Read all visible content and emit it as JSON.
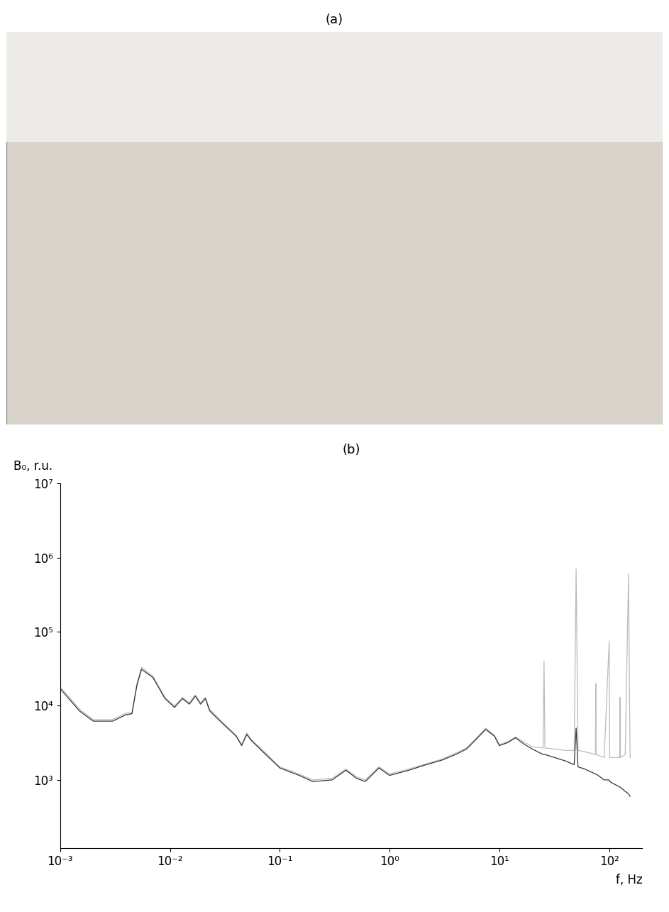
{
  "photo_label": "(a)",
  "chart_data": {
    "type": "line",
    "title": "(b)",
    "y_label": "B₀, r.u.",
    "x_label": "f, Hz",
    "log": true,
    "grid": false,
    "tick_labels": true,
    "x": [
      0.001,
      0.0015,
      0.002,
      0.003,
      0.004,
      0.0045,
      0.005,
      0.0055,
      0.007,
      0.009,
      0.011,
      0.013,
      0.015,
      0.017,
      0.019,
      0.021,
      0.023,
      0.03,
      0.04,
      0.045,
      0.05,
      0.055,
      0.07,
      0.1,
      0.15,
      0.2,
      0.3,
      0.4,
      0.5,
      0.6,
      0.8,
      1.0,
      1.5,
      2,
      3,
      4,
      5,
      6,
      7.5,
      9,
      10,
      12,
      14,
      17,
      20,
      25,
      25.5,
      26,
      40,
      48,
      50,
      52,
      60,
      75,
      75.5,
      76,
      90,
      100,
      101,
      125,
      125.5,
      126,
      140,
      150,
      155
    ],
    "series": [
      {
        "color": "#bbbbbb",
        "values": [
          18000,
          9000,
          6500,
          6500,
          8000,
          8000,
          20000,
          33000,
          25000,
          13000,
          10000,
          13000,
          11000,
          14000,
          11000,
          13000,
          9000,
          6000,
          4000,
          3000,
          4300,
          3500,
          2500,
          1500,
          1200,
          1000,
          1050,
          1400,
          1100,
          1000,
          1500,
          1200,
          1400,
          1600,
          1900,
          2300,
          2700,
          3500,
          5000,
          4000,
          3000,
          3300,
          3800,
          3200,
          2800,
          2700,
          40000,
          2700,
          2500,
          2500,
          700000,
          2500,
          2400,
          2200,
          20000,
          2200,
          2000,
          75000,
          2000,
          2000,
          13000,
          2000,
          2200,
          600000,
          2000
        ]
      },
      {
        "color": "#333333",
        "values": [
          17000,
          8500,
          6200,
          6200,
          7600,
          7800,
          19000,
          31000,
          24000,
          12500,
          9500,
          12500,
          10500,
          13500,
          10500,
          12500,
          8500,
          5800,
          3900,
          2900,
          4100,
          3400,
          2400,
          1450,
          1150,
          950,
          1000,
          1350,
          1050,
          950,
          1450,
          1150,
          1350,
          1550,
          1850,
          2200,
          2600,
          3400,
          4800,
          3900,
          2900,
          3200,
          3700,
          3000,
          2600,
          2200,
          2200,
          2200,
          1800,
          1600,
          5000,
          1500,
          1400,
          1200,
          1200,
          1200,
          1000,
          1000,
          950,
          800,
          800,
          800,
          700,
          650,
          600
        ]
      }
    ],
    "xlim": [
      0.001,
      200
    ],
    "ylim": [
      120,
      10000000
    ],
    "xticks": [
      {
        "value": 0.001,
        "label": "10⁻³"
      },
      {
        "value": 0.01,
        "label": "10⁻²"
      },
      {
        "value": 0.1,
        "label": "10⁻¹"
      },
      {
        "value": 1,
        "label": "10⁰"
      },
      {
        "value": 10,
        "label": "10¹"
      },
      {
        "value": 100,
        "label": "10²"
      }
    ],
    "yticks": [
      {
        "value": 1000,
        "label": "10³"
      },
      {
        "value": 10000,
        "label": "10⁴"
      },
      {
        "value": 100000,
        "label": "10⁵"
      },
      {
        "value": 1000000,
        "label": "10⁶"
      },
      {
        "value": 10000000,
        "label": "10⁷"
      }
    ]
  }
}
